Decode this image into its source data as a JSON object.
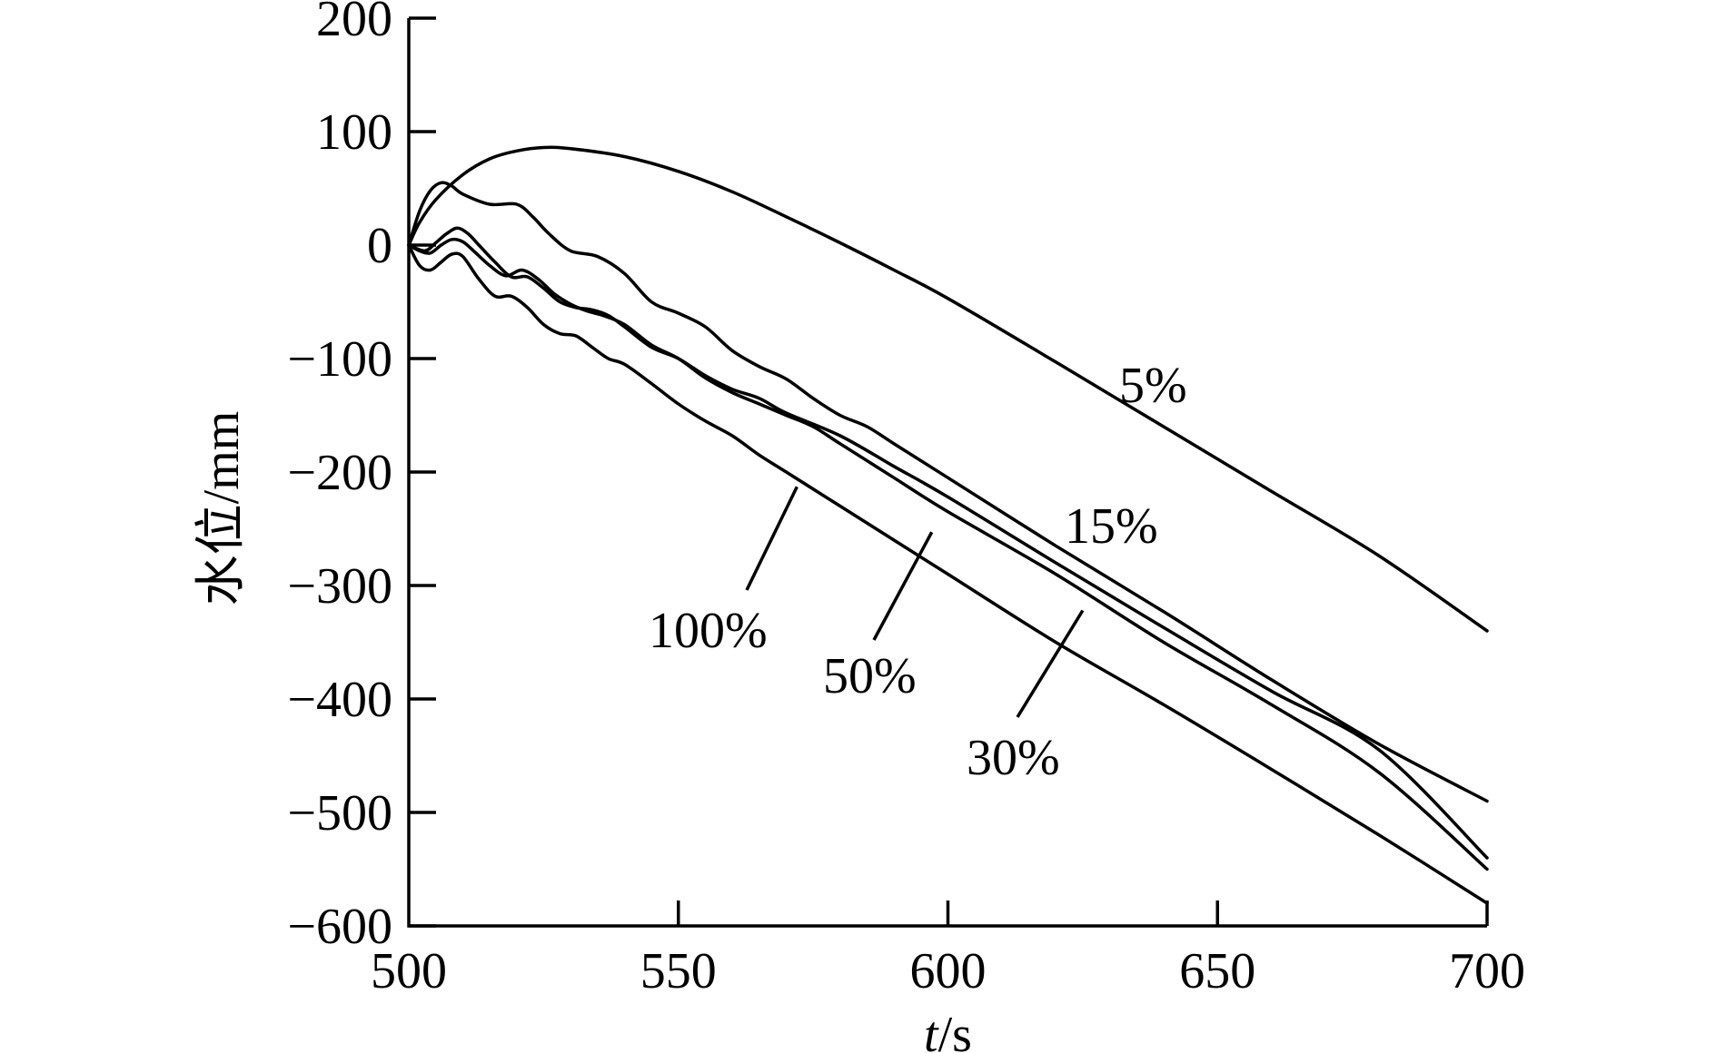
{
  "chart_data": {
    "type": "line",
    "title": "",
    "xlabel_italic": "t",
    "xlabel_rest": "/s",
    "ylabel": "水位/mm",
    "xlim": [
      500,
      700
    ],
    "ylim": [
      -600,
      200
    ],
    "xticks": [
      500,
      550,
      600,
      650,
      700
    ],
    "yticks": [
      200,
      100,
      0,
      -100,
      -200,
      -300,
      -400,
      -500,
      -600
    ],
    "grid": false,
    "series": [
      {
        "name": "5%",
        "x": [
          500,
          502,
          505,
          510,
          515,
          520,
          525,
          530,
          540,
          550,
          560,
          570,
          580,
          590,
          600,
          620,
          640,
          660,
          680,
          700
        ],
        "values": [
          0,
          20,
          40,
          62,
          76,
          83,
          86,
          85,
          78,
          65,
          47,
          25,
          2,
          -22,
          -47,
          -103,
          -160,
          -217,
          -274,
          -340
        ]
      },
      {
        "name": "15%",
        "x": [
          500,
          502,
          504,
          506,
          508,
          510,
          515,
          520,
          523,
          526,
          530,
          535,
          540,
          545,
          550,
          555,
          560,
          565,
          570,
          575,
          580,
          585,
          590,
          600,
          620,
          640,
          660,
          680,
          700
        ],
        "values": [
          0,
          30,
          48,
          55,
          52,
          45,
          36,
          36,
          25,
          10,
          -5,
          -10,
          -25,
          -50,
          -60,
          -72,
          -93,
          -107,
          -118,
          -135,
          -150,
          -160,
          -175,
          -205,
          -265,
          -323,
          -383,
          -440,
          -490
        ]
      },
      {
        "name": "30%",
        "x": [
          500,
          503,
          505,
          507,
          509,
          511,
          513,
          516,
          519,
          522,
          525,
          528,
          531,
          534,
          537,
          540,
          545,
          550,
          555,
          560,
          565,
          570,
          580,
          590,
          600,
          620,
          640,
          660,
          680,
          700
        ],
        "values": [
          0,
          -5,
          2,
          10,
          15,
          10,
          0,
          -15,
          -28,
          -28,
          -38,
          -50,
          -55,
          -57,
          -62,
          -72,
          -90,
          -100,
          -115,
          -127,
          -135,
          -148,
          -168,
          -195,
          -222,
          -280,
          -337,
          -393,
          -445,
          -540
        ]
      },
      {
        "name": "50%",
        "x": [
          500,
          502,
          504,
          506,
          508,
          510,
          512,
          515,
          518,
          521,
          524,
          527,
          530,
          533,
          536,
          540,
          545,
          550,
          555,
          560,
          565,
          570,
          575,
          580,
          590,
          600,
          620,
          640,
          660,
          680,
          700
        ],
        "values": [
          0,
          -5,
          -7,
          0,
          5,
          3,
          -5,
          -18,
          -27,
          -22,
          -30,
          -43,
          -52,
          -58,
          -62,
          -70,
          -88,
          -100,
          -117,
          -130,
          -140,
          -150,
          -160,
          -175,
          -205,
          -235,
          -290,
          -350,
          -405,
          -465,
          -550
        ]
      },
      {
        "name": "100%",
        "x": [
          500,
          502,
          504,
          506,
          508,
          510,
          513,
          516,
          519,
          522,
          525,
          528,
          531,
          534,
          537,
          540,
          545,
          550,
          555,
          560,
          565,
          570,
          580,
          590,
          600,
          620,
          640,
          660,
          680,
          700
        ],
        "values": [
          0,
          -18,
          -22,
          -15,
          -8,
          -10,
          -30,
          -45,
          -45,
          -55,
          -70,
          -78,
          -80,
          -90,
          -100,
          -105,
          -122,
          -140,
          -155,
          -168,
          -185,
          -200,
          -230,
          -260,
          -290,
          -350,
          -405,
          -462,
          -520,
          -580
        ]
      }
    ],
    "annotations": [
      {
        "text": "5%",
        "x": 637,
        "y": -123,
        "series_index": 0
      },
      {
        "text": "15%",
        "x": 632,
        "y": -246,
        "series_index": 1
      },
      {
        "text": "30%",
        "x": 613,
        "y": -448,
        "series_index": 2
      },
      {
        "text": "50%",
        "x": 588,
        "y": -378,
        "series_index": 3
      },
      {
        "text": "100%",
        "x": 556,
        "y": -340,
        "series_index": 4
      }
    ]
  }
}
